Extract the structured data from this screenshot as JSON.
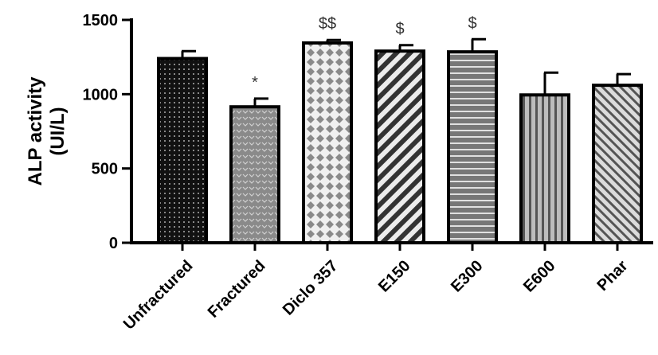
{
  "chart_data": {
    "type": "bar",
    "title": "",
    "ylabel_line1": "ALP activity",
    "ylabel_line2": "(UI/L)",
    "xlabel": "",
    "ylim": [
      0,
      1500
    ],
    "yticks": [
      0,
      500,
      1000,
      1500
    ],
    "grid": false,
    "categories": [
      "Unfractured",
      "Fractured",
      "Diclo 357",
      "E150",
      "E300",
      "E600",
      "Phar"
    ],
    "values": [
      1240,
      915,
      1345,
      1290,
      1285,
      995,
      1060
    ],
    "errors": [
      50,
      55,
      20,
      40,
      85,
      150,
      75
    ],
    "annotations": [
      "",
      "*",
      "$$",
      "$",
      "$",
      "",
      ""
    ],
    "patterns": [
      "dots-on-black",
      "hearts-on-gray",
      "diamonds-on-white",
      "diagonal-stripes-left",
      "horizontal-stripes",
      "vertical-stripes",
      "diagonal-stripes-right"
    ],
    "colors": {
      "bar_outline": "#000000",
      "dark": "#111111",
      "mid": "#8a8a8a",
      "light": "#e6e6e6"
    }
  }
}
